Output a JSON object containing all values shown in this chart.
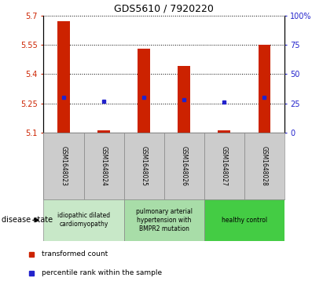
{
  "title": "GDS5610 / 7920220",
  "samples": [
    "GSM1648023",
    "GSM1648024",
    "GSM1648025",
    "GSM1648026",
    "GSM1648027",
    "GSM1648028"
  ],
  "bar_values": [
    5.67,
    5.11,
    5.53,
    5.44,
    5.11,
    5.55
  ],
  "percentile_values": [
    30,
    27,
    30,
    28,
    26,
    30
  ],
  "ylim_left": [
    5.1,
    5.7
  ],
  "ylim_right": [
    0,
    100
  ],
  "yticks_left": [
    5.1,
    5.25,
    5.4,
    5.55,
    5.7
  ],
  "yticks_right": [
    0,
    25,
    50,
    75,
    100
  ],
  "ytick_labels_left": [
    "5.1",
    "5.25",
    "5.4",
    "5.55",
    "5.7"
  ],
  "ytick_labels_right": [
    "0",
    "25",
    "50",
    "75",
    "100%"
  ],
  "bar_color": "#cc2200",
  "square_color": "#2222cc",
  "bar_bottom": 5.1,
  "groups": [
    {
      "label": "idiopathic dilated\ncardiomyopathy",
      "indices": [
        0,
        1
      ],
      "color": "#c8e8c8"
    },
    {
      "label": "pulmonary arterial\nhypertension with\nBMPR2 mutation",
      "indices": [
        2,
        3
      ],
      "color": "#a8dda8"
    },
    {
      "label": "healthy control",
      "indices": [
        4,
        5
      ],
      "color": "#44cc44"
    }
  ],
  "disease_state_label": "disease state",
  "bar_width": 0.3,
  "sample_box_color": "#cccccc",
  "sample_box_edge": "#888888"
}
